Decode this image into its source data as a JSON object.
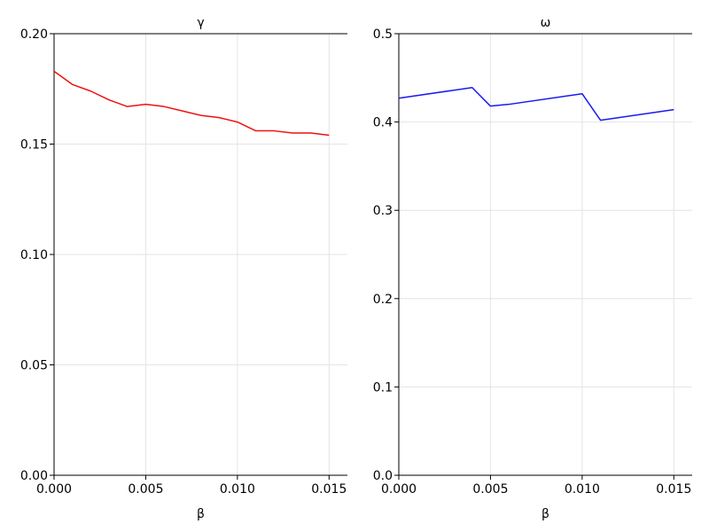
{
  "chart_data": [
    {
      "type": "line",
      "title": "γ",
      "xlabel": "β",
      "ylabel": "",
      "xlim": [
        0.0,
        0.016
      ],
      "ylim": [
        0.0,
        0.2
      ],
      "xticks": [
        0.0,
        0.005,
        0.01,
        0.015
      ],
      "xtick_labels": [
        "0.000",
        "0.005",
        "0.010",
        "0.015"
      ],
      "yticks": [
        0.0,
        0.05,
        0.1,
        0.15,
        0.2
      ],
      "ytick_labels": [
        "0.00",
        "0.05",
        "0.10",
        "0.15",
        "0.20"
      ],
      "grid": true,
      "series": [
        {
          "color": "#ee1111",
          "x": [
            0.0,
            0.001,
            0.002,
            0.003,
            0.004,
            0.005,
            0.006,
            0.007,
            0.008,
            0.009,
            0.01,
            0.011,
            0.012,
            0.013,
            0.014,
            0.015
          ],
          "y": [
            0.183,
            0.177,
            0.174,
            0.17,
            0.167,
            0.168,
            0.167,
            0.165,
            0.163,
            0.162,
            0.16,
            0.156,
            0.156,
            0.155,
            0.155,
            0.154
          ]
        }
      ]
    },
    {
      "type": "line",
      "title": "ω",
      "xlabel": "β",
      "ylabel": "",
      "xlim": [
        0.0,
        0.016
      ],
      "ylim": [
        0.0,
        0.5
      ],
      "xticks": [
        0.0,
        0.005,
        0.01,
        0.015
      ],
      "xtick_labels": [
        "0.000",
        "0.005",
        "0.010",
        "0.015"
      ],
      "yticks": [
        0.0,
        0.1,
        0.2,
        0.3,
        0.4,
        0.5
      ],
      "ytick_labels": [
        "0.0",
        "0.1",
        "0.2",
        "0.3",
        "0.4",
        "0.5"
      ],
      "grid": true,
      "series": [
        {
          "color": "#1a1aee",
          "x": [
            0.0,
            0.004,
            0.005,
            0.006,
            0.01,
            0.011,
            0.015
          ],
          "y": [
            0.427,
            0.439,
            0.418,
            0.42,
            0.432,
            0.402,
            0.414
          ]
        }
      ]
    }
  ]
}
